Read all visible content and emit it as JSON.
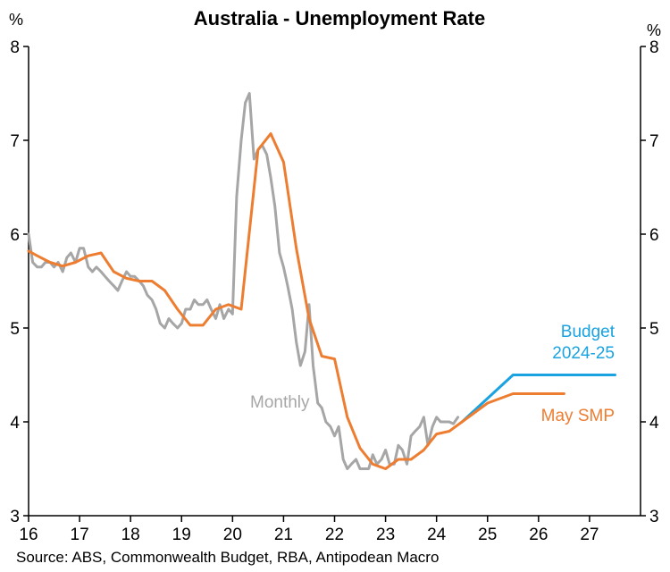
{
  "chart_data": {
    "type": "line",
    "title": "Australia - Unemployment Rate",
    "y_unit_left": "%",
    "y_unit_right": "%",
    "xlim": [
      2016,
      2028
    ],
    "ylim": [
      3,
      8
    ],
    "x_ticks": [
      {
        "value": 2016,
        "label": "16"
      },
      {
        "value": 2017,
        "label": "17"
      },
      {
        "value": 2018,
        "label": "18"
      },
      {
        "value": 2019,
        "label": "19"
      },
      {
        "value": 2020,
        "label": "20"
      },
      {
        "value": 2021,
        "label": "21"
      },
      {
        "value": 2022,
        "label": "22"
      },
      {
        "value": 2023,
        "label": "23"
      },
      {
        "value": 2024,
        "label": "24"
      },
      {
        "value": 2025,
        "label": "25"
      },
      {
        "value": 2026,
        "label": "26"
      },
      {
        "value": 2027,
        "label": "27"
      }
    ],
    "y_ticks": [
      3,
      4,
      5,
      6,
      7,
      8
    ],
    "grid": false,
    "source": "Source: ABS, Commonwealth Budget, RBA, Antipodean Macro",
    "series": [
      {
        "name": "Budget 2024-25",
        "label_lines": [
          "Budget",
          "2024-25"
        ],
        "color": "#1aa3e0",
        "x": [
          2024.5,
          2025.5,
          2027.5
        ],
        "y": [
          4.0,
          4.5,
          4.5
        ]
      },
      {
        "name": "Monthly",
        "label_lines": [
          "Monthly"
        ],
        "color": "#a6a6a6",
        "x": [
          2016.0,
          2016.08,
          2016.17,
          2016.25,
          2016.33,
          2016.42,
          2016.5,
          2016.58,
          2016.67,
          2016.75,
          2016.83,
          2016.92,
          2017.0,
          2017.08,
          2017.17,
          2017.25,
          2017.33,
          2017.42,
          2017.5,
          2017.58,
          2017.67,
          2017.75,
          2017.83,
          2017.92,
          2018.0,
          2018.08,
          2018.17,
          2018.25,
          2018.33,
          2018.42,
          2018.5,
          2018.58,
          2018.67,
          2018.75,
          2018.83,
          2018.92,
          2019.0,
          2019.08,
          2019.17,
          2019.25,
          2019.33,
          2019.42,
          2019.5,
          2019.58,
          2019.67,
          2019.75,
          2019.83,
          2019.92,
          2020.0,
          2020.08,
          2020.17,
          2020.25,
          2020.33,
          2020.42,
          2020.5,
          2020.58,
          2020.67,
          2020.75,
          2020.83,
          2020.92,
          2021.0,
          2021.08,
          2021.17,
          2021.25,
          2021.33,
          2021.42,
          2021.5,
          2021.58,
          2021.67,
          2021.75,
          2021.83,
          2021.92,
          2022.0,
          2022.08,
          2022.17,
          2022.25,
          2022.33,
          2022.42,
          2022.5,
          2022.58,
          2022.67,
          2022.75,
          2022.83,
          2022.92,
          2023.0,
          2023.08,
          2023.17,
          2023.25,
          2023.33,
          2023.42,
          2023.5,
          2023.58,
          2023.67,
          2023.75,
          2023.83,
          2023.92,
          2024.0,
          2024.08,
          2024.17,
          2024.25,
          2024.33,
          2024.42
        ],
        "y": [
          6.0,
          5.7,
          5.65,
          5.65,
          5.7,
          5.7,
          5.65,
          5.7,
          5.6,
          5.75,
          5.8,
          5.7,
          5.85,
          5.85,
          5.65,
          5.6,
          5.65,
          5.6,
          5.55,
          5.5,
          5.45,
          5.4,
          5.5,
          5.6,
          5.55,
          5.55,
          5.5,
          5.45,
          5.35,
          5.3,
          5.2,
          5.05,
          5.0,
          5.1,
          5.05,
          5.0,
          5.05,
          5.2,
          5.2,
          5.3,
          5.25,
          5.25,
          5.3,
          5.2,
          5.1,
          5.25,
          5.1,
          5.2,
          5.15,
          6.4,
          7.0,
          7.4,
          7.5,
          6.8,
          6.9,
          6.95,
          6.85,
          6.6,
          6.3,
          5.8,
          5.65,
          5.45,
          5.2,
          4.85,
          4.6,
          4.75,
          5.25,
          4.6,
          4.2,
          4.15,
          4.0,
          3.95,
          3.85,
          3.95,
          3.6,
          3.5,
          3.55,
          3.6,
          3.5,
          3.5,
          3.5,
          3.65,
          3.55,
          3.6,
          3.7,
          3.55,
          3.55,
          3.75,
          3.7,
          3.55,
          3.85,
          3.9,
          3.95,
          4.05,
          3.75,
          3.95,
          4.05,
          4.0,
          4.0,
          4.0,
          3.98,
          4.05
        ]
      },
      {
        "name": "May SMP",
        "label_lines": [
          "May SMP"
        ],
        "color": "#ed7d31",
        "x": [
          2016.0,
          2016.17,
          2016.42,
          2016.67,
          2016.92,
          2017.17,
          2017.42,
          2017.67,
          2017.92,
          2018.17,
          2018.42,
          2018.67,
          2018.92,
          2019.17,
          2019.42,
          2019.67,
          2019.92,
          2020.17,
          2020.5,
          2020.75,
          2021.0,
          2021.25,
          2021.5,
          2021.75,
          2022.0,
          2022.25,
          2022.5,
          2022.75,
          2023.0,
          2023.25,
          2023.5,
          2023.75,
          2024.0,
          2024.25,
          2024.5,
          2025.0,
          2025.5,
          2026.0,
          2026.5
        ],
        "y": [
          5.82,
          5.77,
          5.7,
          5.66,
          5.7,
          5.77,
          5.8,
          5.6,
          5.53,
          5.5,
          5.5,
          5.4,
          5.2,
          5.03,
          5.03,
          5.2,
          5.25,
          5.2,
          6.9,
          7.07,
          6.77,
          5.85,
          5.1,
          4.7,
          4.67,
          4.05,
          3.72,
          3.55,
          3.5,
          3.6,
          3.6,
          3.7,
          3.87,
          3.9,
          4.0,
          4.2,
          4.3,
          4.3,
          4.3
        ]
      }
    ]
  }
}
